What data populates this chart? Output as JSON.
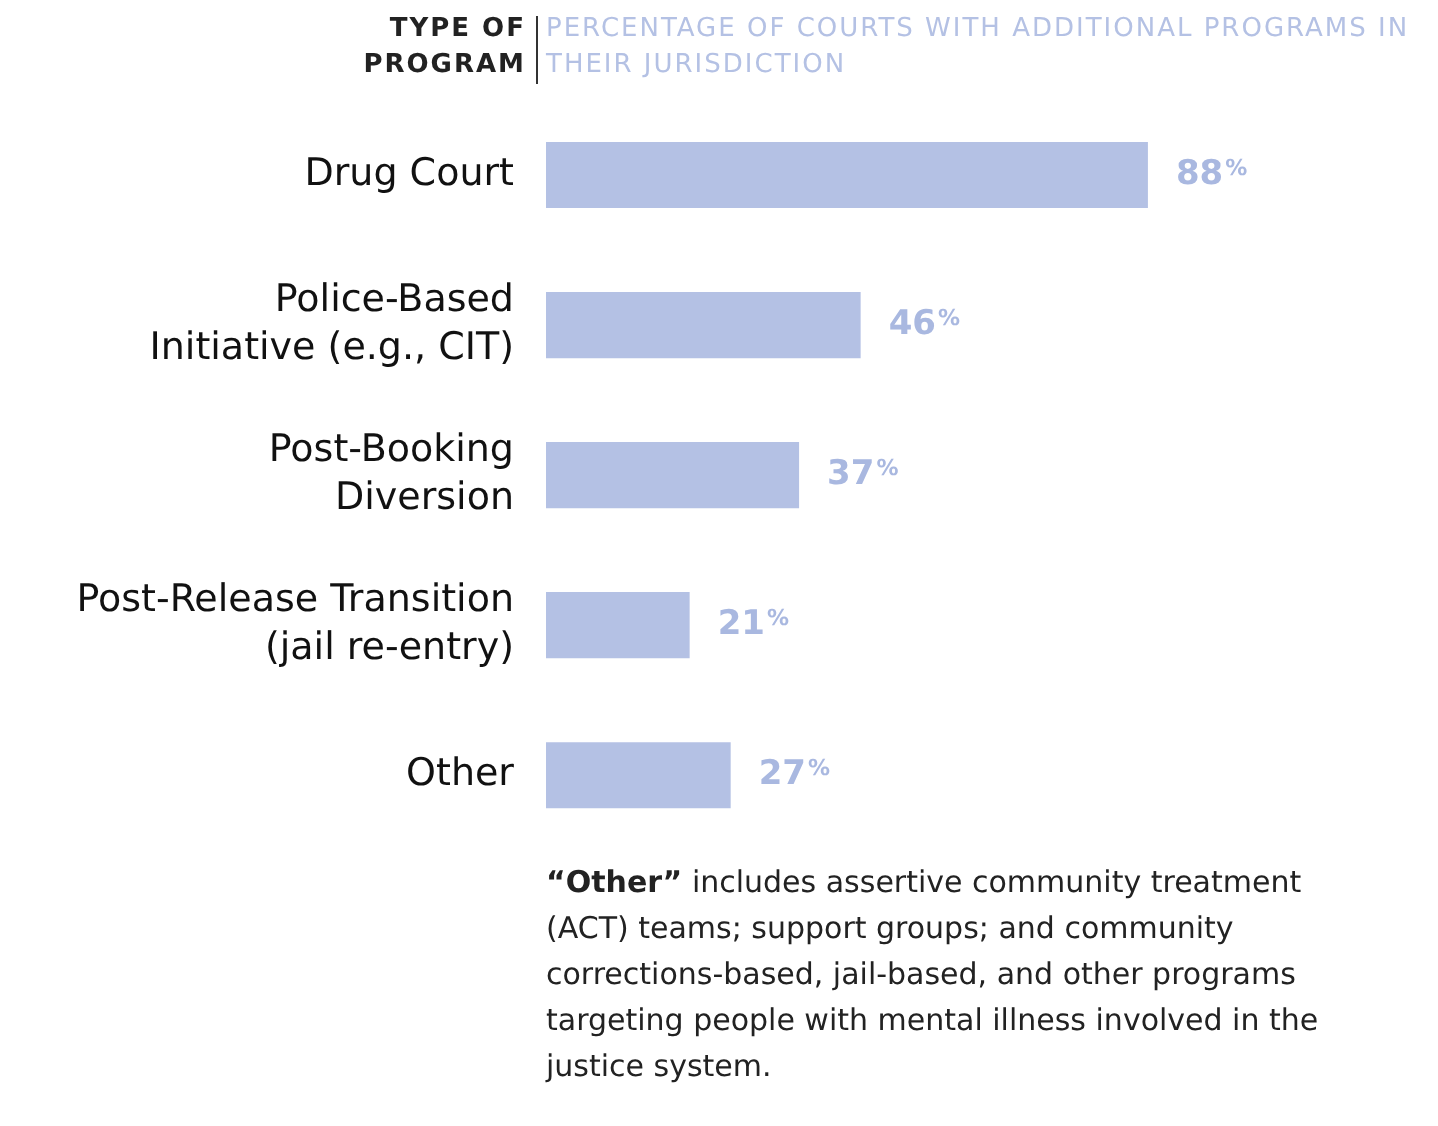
{
  "chart_data": {
    "type": "bar",
    "orientation": "horizontal",
    "ylabel": "TYPE OF PROGRAM",
    "xlabel": "PERCENTAGE OF COURTS WITH ADDITIONAL PROGRAMS IN THEIR JURISDICTION",
    "categories": [
      "Drug Court",
      "Police-Based\nInitiative (e.g., CIT)",
      "Post-Booking\nDiversion",
      "Post-Release Transition\n(jail re-entry)",
      "Other"
    ],
    "values": [
      88,
      46,
      37,
      21,
      27
    ],
    "color": "#b4c1e4",
    "value_labels": [
      "88%",
      "46%",
      "37%",
      "21%",
      "27%"
    ],
    "legend": false,
    "tick_labels": "y",
    "annotations": [
      "“Other” includes assertive community treatment (ACT) teams; support groups; and community corrections-based, jail-based, and other programs targeting people with mental illness involved in the justice system."
    ]
  }
}
